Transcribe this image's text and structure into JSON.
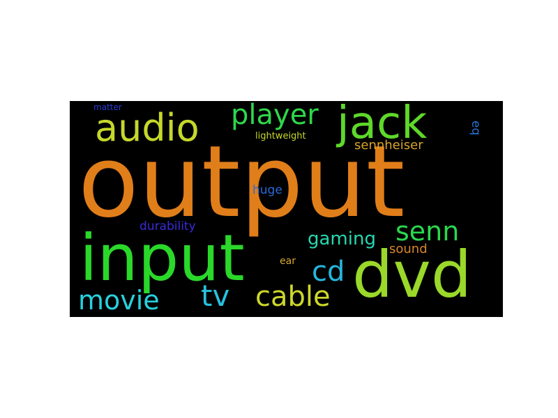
{
  "cloud": {
    "background": "#000000",
    "words": [
      {
        "id": "output",
        "text": "output",
        "color": "#e07e1a"
      },
      {
        "id": "input",
        "text": "input",
        "color": "#2ad82a"
      },
      {
        "id": "dvd",
        "text": "dvd",
        "color": "#9ad82a"
      },
      {
        "id": "jack",
        "text": "jack",
        "color": "#5ed82a"
      },
      {
        "id": "audio",
        "text": "audio",
        "color": "#c5d82a"
      },
      {
        "id": "player",
        "text": "player",
        "color": "#2ed84a"
      },
      {
        "id": "senn",
        "text": "senn",
        "color": "#2ad84e"
      },
      {
        "id": "cable",
        "text": "cable",
        "color": "#cdd82a"
      },
      {
        "id": "movie",
        "text": "movie",
        "color": "#26d1de"
      },
      {
        "id": "tv",
        "text": "tv",
        "color": "#26c2de"
      },
      {
        "id": "cd",
        "text": "cd",
        "color": "#26b7de"
      },
      {
        "id": "gaming",
        "text": "gaming",
        "color": "#26d8b0"
      },
      {
        "id": "sennheiser",
        "text": "sennheiser",
        "color": "#d8a52a"
      },
      {
        "id": "sound",
        "text": "sound",
        "color": "#d8862a"
      },
      {
        "id": "durability",
        "text": "durability",
        "color": "#3a2ad8"
      },
      {
        "id": "huge",
        "text": "huge",
        "color": "#2a6ad8"
      },
      {
        "id": "lightweight",
        "text": "lightweight",
        "color": "#c9d82a"
      },
      {
        "id": "ear",
        "text": "ear",
        "color": "#d8a92a"
      },
      {
        "id": "matter",
        "text": "matter",
        "color": "#2a3ad8"
      },
      {
        "id": "eq",
        "text": "eq",
        "color": "#2a74d8"
      }
    ]
  }
}
